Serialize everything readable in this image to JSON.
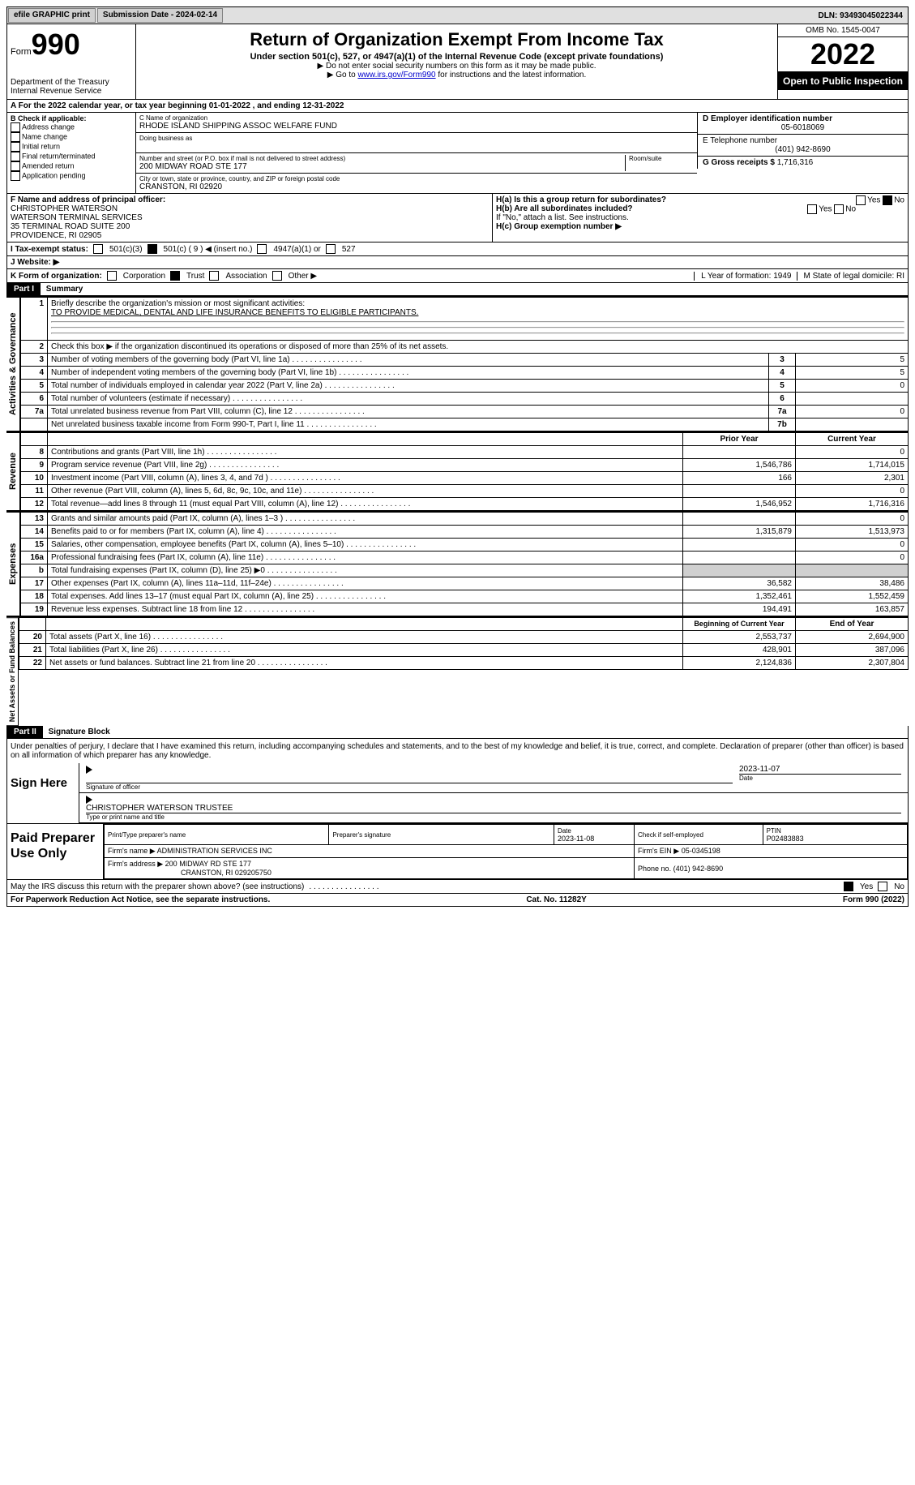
{
  "topbar": {
    "efile": "efile GRAPHIC print",
    "submission_label": "Submission Date - 2024-02-14",
    "dln_label": "DLN: 93493045022344"
  },
  "header": {
    "form": "Form",
    "num": "990",
    "dept": "Department of the Treasury",
    "irs": "Internal Revenue Service",
    "title": "Return of Organization Exempt From Income Tax",
    "subtitle": "Under section 501(c), 527, or 4947(a)(1) of the Internal Revenue Code (except private foundations)",
    "note1": "▶ Do not enter social security numbers on this form as it may be made public.",
    "note2_prefix": "▶ Go to ",
    "note2_link": "www.irs.gov/Form990",
    "note2_suffix": " for instructions and the latest information.",
    "omb": "OMB No. 1545-0047",
    "year": "2022",
    "open": "Open to Public Inspection"
  },
  "row_a": "A   For the 2022 calendar year, or tax year beginning 01-01-2022    , and ending 12-31-2022",
  "box_b": {
    "title": "B Check if applicable:",
    "opts": [
      "Address change",
      "Name change",
      "Initial return",
      "Final return/terminated",
      "Amended return",
      "Application pending"
    ]
  },
  "box_c": {
    "label": "C Name of organization",
    "name": "RHODE ISLAND SHIPPING ASSOC WELFARE FUND",
    "dba_label": "Doing business as",
    "street_label": "Number and street (or P.O. box if mail is not delivered to street address)",
    "room_label": "Room/suite",
    "street": "200 MIDWAY ROAD STE 177",
    "city_label": "City or town, state or province, country, and ZIP or foreign postal code",
    "city": "CRANSTON, RI  02920"
  },
  "box_d": {
    "label": "D Employer identification number",
    "val": "05-6018069"
  },
  "box_e": {
    "label": "E Telephone number",
    "val": "(401) 942-8690"
  },
  "box_g": {
    "label": "G Gross receipts $",
    "val": "1,716,316"
  },
  "box_f": {
    "label": "F  Name and address of principal officer:",
    "lines": [
      "CHRISTOPHER WATERSON",
      "WATERSON TERMINAL SERVICES",
      "35 TERMINAL ROAD SUITE 200",
      "PROVIDENCE, RI  02905"
    ]
  },
  "box_h": {
    "ha": "H(a)  Is this a group return for subordinates?",
    "yes": "Yes",
    "no": "No",
    "hb": "H(b)  Are all subordinates included?",
    "hb_note": "If \"No,\" attach a list. See instructions.",
    "hc": "H(c)  Group exemption number ▶"
  },
  "row_i": {
    "label": "I   Tax-exempt status:",
    "o1": "501(c)(3)",
    "o2": "501(c) ( 9 ) ◀ (insert no.)",
    "o3": "4947(a)(1) or",
    "o4": "527"
  },
  "row_j": "J   Website: ▶",
  "row_k": {
    "label": "K Form of organization:",
    "opts": [
      "Corporation",
      "Trust",
      "Association",
      "Other ▶"
    ],
    "l": "L Year of formation: 1949",
    "m": "M State of legal domicile: RI"
  },
  "part1": {
    "hdr": "Part I",
    "title": "Summary"
  },
  "summary": {
    "q1": "Briefly describe the organization's mission or most significant activities:",
    "mission": "TO PROVIDE MEDICAL, DENTAL AND LIFE INSURANCE BENEFITS TO ELIGIBLE PARTICIPANTS.",
    "q2": "Check this box ▶      if the organization discontinued its operations or disposed of more than 25% of its net assets.",
    "rows_gov": [
      {
        "n": "3",
        "t": "Number of voting members of the governing body (Part VI, line 1a)",
        "l": "3",
        "v": "5"
      },
      {
        "n": "4",
        "t": "Number of independent voting members of the governing body (Part VI, line 1b)",
        "l": "4",
        "v": "5"
      },
      {
        "n": "5",
        "t": "Total number of individuals employed in calendar year 2022 (Part V, line 2a)",
        "l": "5",
        "v": "0"
      },
      {
        "n": "6",
        "t": "Total number of volunteers (estimate if necessary)",
        "l": "6",
        "v": ""
      },
      {
        "n": "7a",
        "t": "Total unrelated business revenue from Part VIII, column (C), line 12",
        "l": "7a",
        "v": "0"
      },
      {
        "n": "",
        "t": "Net unrelated business taxable income from Form 990-T, Part I, line 11",
        "l": "7b",
        "v": ""
      }
    ],
    "col_hdr_prior": "Prior Year",
    "col_hdr_curr": "Current Year",
    "rows_rev": [
      {
        "n": "8",
        "t": "Contributions and grants (Part VIII, line 1h)",
        "p": "",
        "c": "0"
      },
      {
        "n": "9",
        "t": "Program service revenue (Part VIII, line 2g)",
        "p": "1,546,786",
        "c": "1,714,015"
      },
      {
        "n": "10",
        "t": "Investment income (Part VIII, column (A), lines 3, 4, and 7d )",
        "p": "166",
        "c": "2,301"
      },
      {
        "n": "11",
        "t": "Other revenue (Part VIII, column (A), lines 5, 6d, 8c, 9c, 10c, and 11e)",
        "p": "",
        "c": "0"
      },
      {
        "n": "12",
        "t": "Total revenue—add lines 8 through 11 (must equal Part VIII, column (A), line 12)",
        "p": "1,546,952",
        "c": "1,716,316"
      }
    ],
    "rows_exp": [
      {
        "n": "13",
        "t": "Grants and similar amounts paid (Part IX, column (A), lines 1–3 )",
        "p": "",
        "c": "0"
      },
      {
        "n": "14",
        "t": "Benefits paid to or for members (Part IX, column (A), line 4)",
        "p": "1,315,879",
        "c": "1,513,973"
      },
      {
        "n": "15",
        "t": "Salaries, other compensation, employee benefits (Part IX, column (A), lines 5–10)",
        "p": "",
        "c": "0"
      },
      {
        "n": "16a",
        "t": "Professional fundraising fees (Part IX, column (A), line 11e)",
        "p": "",
        "c": "0"
      },
      {
        "n": "b",
        "t": "Total fundraising expenses (Part IX, column (D), line 25) ▶0",
        "p": "shade",
        "c": "shade"
      },
      {
        "n": "17",
        "t": "Other expenses (Part IX, column (A), lines 11a–11d, 11f–24e)",
        "p": "36,582",
        "c": "38,486"
      },
      {
        "n": "18",
        "t": "Total expenses. Add lines 13–17 (must equal Part IX, column (A), line 25)",
        "p": "1,352,461",
        "c": "1,552,459"
      },
      {
        "n": "19",
        "t": "Revenue less expenses. Subtract line 18 from line 12",
        "p": "194,491",
        "c": "163,857"
      }
    ],
    "col_hdr_boy": "Beginning of Current Year",
    "col_hdr_eoy": "End of Year",
    "rows_net": [
      {
        "n": "20",
        "t": "Total assets (Part X, line 16)",
        "p": "2,553,737",
        "c": "2,694,900"
      },
      {
        "n": "21",
        "t": "Total liabilities (Part X, line 26)",
        "p": "428,901",
        "c": "387,096"
      },
      {
        "n": "22",
        "t": "Net assets or fund balances. Subtract line 21 from line 20",
        "p": "2,124,836",
        "c": "2,307,804"
      }
    ],
    "side_gov": "Activities & Governance",
    "side_rev": "Revenue",
    "side_exp": "Expenses",
    "side_net": "Net Assets or Fund Balances"
  },
  "part2": {
    "hdr": "Part II",
    "title": "Signature Block"
  },
  "penalty": "Under penalties of perjury, I declare that I have examined this return, including accompanying schedules and statements, and to the best of my knowledge and belief, it is true, correct, and complete. Declaration of preparer (other than officer) is based on all information of which preparer has any knowledge.",
  "sign": {
    "here": "Sign Here",
    "sig_label": "Signature of officer",
    "date": "2023-11-07",
    "date_label": "Date",
    "name": "CHRISTOPHER WATERSON  TRUSTEE",
    "name_label": "Type or print name and title"
  },
  "paid": {
    "title": "Paid Preparer Use Only",
    "h1": "Print/Type preparer's name",
    "h2": "Preparer's signature",
    "h3": "Date",
    "h3v": "2023-11-08",
    "h4": "Check      if self-employed",
    "h5": "PTIN",
    "h5v": "P02483883",
    "firm_label": "Firm's name    ▶",
    "firm": "ADMINISTRATION SERVICES INC",
    "ein_label": "Firm's EIN ▶",
    "ein": "05-0345198",
    "addr_label": "Firm's address ▶",
    "addr1": "200 MIDWAY RD STE 177",
    "addr2": "CRANSTON, RI  029205750",
    "phone_label": "Phone no.",
    "phone": "(401) 942-8690"
  },
  "discuss": {
    "q": "May the IRS discuss this return with the preparer shown above? (see instructions)",
    "yes": "Yes",
    "no": "No"
  },
  "footer": {
    "pra": "For Paperwork Reduction Act Notice, see the separate instructions.",
    "cat": "Cat. No. 11282Y",
    "form": "Form 990 (2022)"
  }
}
